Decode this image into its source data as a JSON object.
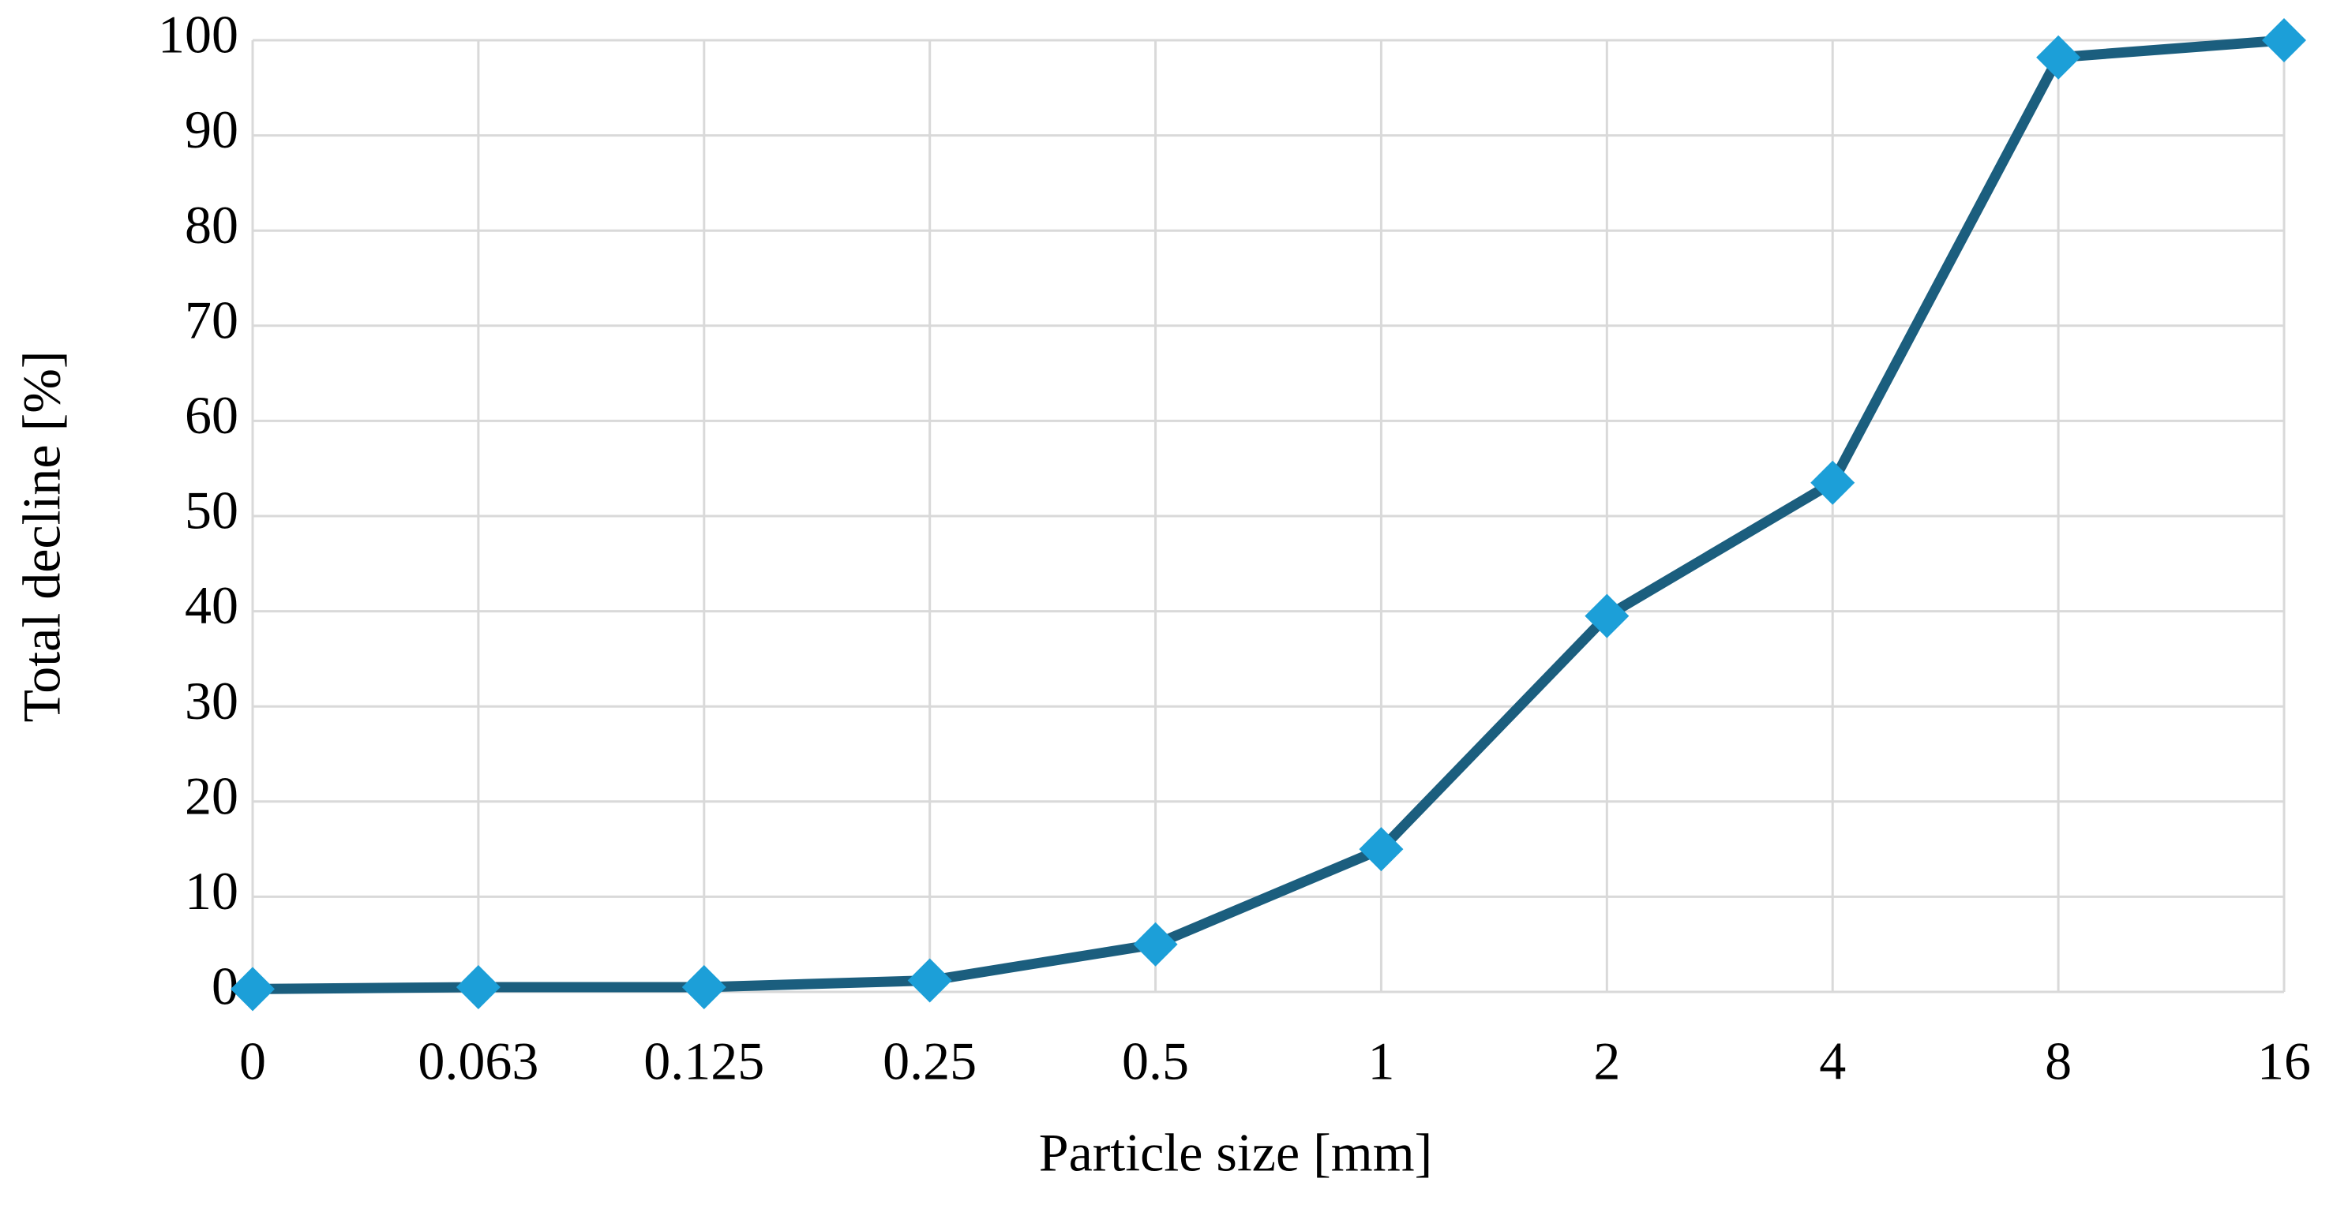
{
  "chart_data": {
    "type": "line",
    "x_label": "Particle size [mm]",
    "y_label": "Total decline [%]",
    "categories": [
      "0",
      "0.063",
      "0.125",
      "0.25",
      "0.5",
      "1",
      "2",
      "4",
      "8",
      "16"
    ],
    "series": [
      {
        "name": "Total decline",
        "color": "#1b5e7e",
        "marker_color": "#1c9fd8",
        "values": [
          0.3,
          0.5,
          0.5,
          1.2,
          5,
          15,
          39.5,
          53.5,
          98.2,
          100
        ]
      }
    ],
    "ylim": [
      0,
      100
    ],
    "yticks": [
      0,
      10,
      20,
      30,
      40,
      50,
      60,
      70,
      80,
      90,
      100
    ],
    "grid": true
  }
}
